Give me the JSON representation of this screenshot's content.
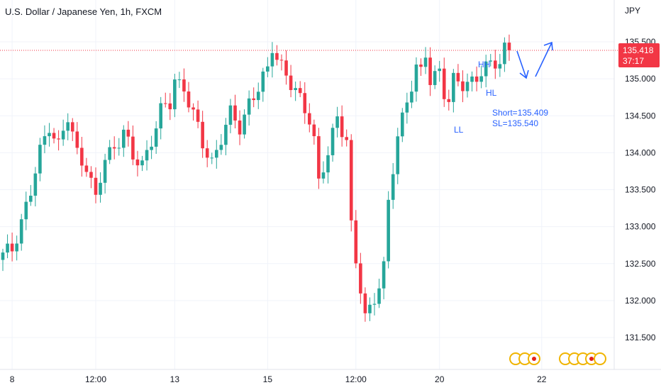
{
  "chart_data": {
    "type": "candlestick",
    "title": "U.S. Dollar / Japanese Yen, 1h, FXCM",
    "currency": "JPY",
    "last_price": "135.418",
    "countdown": "37:17",
    "y_ticks": [
      "135.500",
      "135.000",
      "134.500",
      "134.000",
      "133.500",
      "133.000",
      "132.500",
      "132.000",
      "131.500"
    ],
    "y_tick_values": [
      135.5,
      135.0,
      134.5,
      134.0,
      133.5,
      133.0,
      132.5,
      132.0,
      131.5
    ],
    "ylim": [
      131.2,
      135.75
    ],
    "x_ticks": [
      "8",
      "12:00",
      "13",
      "15",
      "12:00",
      "20",
      "22"
    ],
    "x_tick_index": [
      2,
      20,
      37,
      57,
      76,
      94,
      116
    ],
    "n_candles": 132,
    "anchors": [
      [
        0,
        132.6
      ],
      [
        2,
        132.7
      ],
      [
        4,
        133.1
      ],
      [
        6,
        133.45
      ],
      [
        8,
        134.0
      ],
      [
        10,
        134.4
      ],
      [
        12,
        134.1
      ],
      [
        14,
        134.45
      ],
      [
        16,
        134.0
      ],
      [
        18,
        133.85
      ],
      [
        20,
        133.35
      ],
      [
        22,
        133.9
      ],
      [
        24,
        134.1
      ],
      [
        26,
        134.3
      ],
      [
        28,
        133.9
      ],
      [
        30,
        133.85
      ],
      [
        32,
        134.2
      ],
      [
        34,
        134.55
      ],
      [
        36,
        134.65
      ],
      [
        37,
        135.0
      ],
      [
        39,
        134.9
      ],
      [
        41,
        134.5
      ],
      [
        43,
        134.1
      ],
      [
        45,
        133.9
      ],
      [
        47,
        134.2
      ],
      [
        49,
        134.5
      ],
      [
        51,
        134.35
      ],
      [
        53,
        134.7
      ],
      [
        55,
        134.85
      ],
      [
        57,
        135.1
      ],
      [
        58,
        135.45
      ],
      [
        60,
        135.2
      ],
      [
        62,
        134.9
      ],
      [
        64,
        134.7
      ],
      [
        66,
        134.5
      ],
      [
        67,
        134.2
      ],
      [
        68,
        133.6
      ],
      [
        70,
        133.95
      ],
      [
        72,
        134.5
      ],
      [
        74,
        134.2
      ],
      [
        75,
        133.0
      ],
      [
        76,
        132.5
      ],
      [
        78,
        131.75
      ],
      [
        79,
        131.9
      ],
      [
        81,
        132.25
      ],
      [
        82,
        132.45
      ],
      [
        83,
        133.3
      ],
      [
        84,
        133.75
      ],
      [
        85,
        134.2
      ],
      [
        87,
        134.75
      ],
      [
        89,
        135.15
      ],
      [
        90,
        135.05
      ],
      [
        91,
        135.3
      ],
      [
        92,
        134.95
      ],
      [
        94,
        135.15
      ],
      [
        95,
        134.85
      ],
      [
        96,
        134.7
      ],
      [
        97,
        134.95
      ],
      [
        99,
        134.9
      ],
      [
        101,
        135.0
      ],
      [
        103,
        135.1
      ],
      [
        105,
        135.15
      ],
      [
        107,
        135.25
      ],
      [
        108,
        135.45
      ],
      [
        109,
        135.42
      ]
    ],
    "annotations": {
      "hh": "HH",
      "hl": "HL",
      "ll": "LL",
      "short": "Short=135.409",
      "sl": "SL=135.540"
    },
    "colors": {
      "up": "#26a69a",
      "down": "#f23645",
      "annotation": "#2962ff",
      "grid": "#f0f3fa",
      "axis_text": "#131722"
    },
    "grid": true
  }
}
